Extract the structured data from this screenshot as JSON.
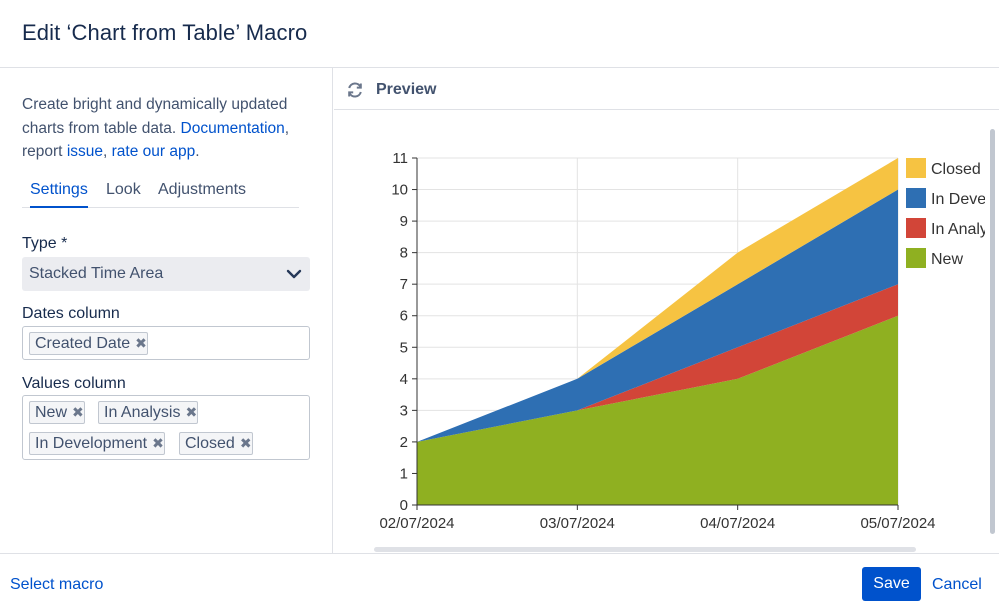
{
  "dialog": {
    "title": "Edit ‘Chart from Table’ Macro"
  },
  "intro": {
    "text1": "Create bright and dynamically updated charts from table data. ",
    "documentation_link": "Documentation",
    "text2": ", report ",
    "issue_link": "issue",
    "text3": ", ",
    "rate_link": "rate our app",
    "text4": "."
  },
  "tabs": [
    {
      "label": "Settings",
      "active": true
    },
    {
      "label": "Look",
      "active": false
    },
    {
      "label": "Adjustments",
      "active": false
    }
  ],
  "type_field": {
    "label": "Type *",
    "value": "Stacked Time Area"
  },
  "dates_field": {
    "label": "Dates column",
    "chips": [
      "Created Date"
    ]
  },
  "values_field": {
    "label": "Values column",
    "chips": [
      "New",
      "In Analysis",
      "In Development",
      "Closed"
    ]
  },
  "preview": {
    "title": "Preview"
  },
  "chart_data": {
    "type": "area",
    "stacked": true,
    "x": [
      "02/07/2024",
      "03/07/2024",
      "04/07/2024",
      "05/07/2024"
    ],
    "series": [
      {
        "name": "New",
        "values": [
          2,
          3,
          4,
          6
        ],
        "color": "#8fb021"
      },
      {
        "name": "In Analysis",
        "values": [
          0,
          0,
          1,
          1
        ],
        "color": "#d24538"
      },
      {
        "name": "In Development",
        "values": [
          0,
          1,
          2,
          3
        ],
        "color": "#2e6fb3"
      },
      {
        "name": "Closed",
        "values": [
          0,
          0,
          1,
          1
        ],
        "color": "#f6c342"
      }
    ],
    "legend_order": [
      "Closed",
      "In Development",
      "In Analysis",
      "New"
    ],
    "legend_display": [
      "Closed",
      "In Deve",
      "In Analy",
      "New"
    ],
    "y_ticks": [
      "0",
      "1",
      "2",
      "3",
      "4",
      "5",
      "6",
      "7",
      "8",
      "9",
      "10",
      "11"
    ],
    "ylim": [
      0,
      11
    ],
    "grid": true,
    "legend": "right"
  },
  "footer": {
    "select_macro": "Select macro",
    "save": "Save",
    "cancel": "Cancel"
  },
  "colors": {
    "primary": "#0052cc",
    "text": "#172b4d",
    "border": "#dfe1e6"
  }
}
